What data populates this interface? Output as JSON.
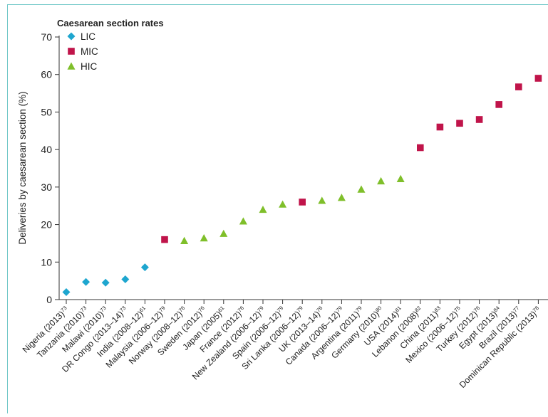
{
  "chart_data": {
    "type": "scatter",
    "legend_title": "Caesarean section rates",
    "legend_position": "top-left",
    "ylabel": "Deliveries by caesarean section (%)",
    "xlabel": "",
    "ylim": [
      0,
      70
    ],
    "yticks": [
      0,
      10,
      20,
      30,
      40,
      50,
      60,
      70
    ],
    "grid": false,
    "groups": [
      {
        "key": "LIC",
        "label": "LIC",
        "color": "#1ea6cf",
        "marker": "diamond"
      },
      {
        "key": "MIC",
        "label": "MIC",
        "color": "#c0144a",
        "marker": "square"
      },
      {
        "key": "HIC",
        "label": "HIC",
        "color": "#7fbf2a",
        "marker": "triangle"
      }
    ],
    "points": [
      {
        "label": "Nigeria (2013)",
        "ref": "73",
        "group": "LIC",
        "value": 2
      },
      {
        "label": "Tanzania (2010)",
        "ref": "73",
        "group": "LIC",
        "value": 4.7
      },
      {
        "label": "Malawi (2010)",
        "ref": "73",
        "group": "LIC",
        "value": 4.5
      },
      {
        "label": "DR Congo (2013–14)",
        "ref": "73",
        "group": "LIC",
        "value": 5.4
      },
      {
        "label": "India (2008–12)",
        "ref": "61",
        "group": "LIC",
        "value": 8.6
      },
      {
        "label": "Malaysia (2006–12)",
        "ref": "79",
        "group": "MIC",
        "value": 16
      },
      {
        "label": "Norway (2008–12)",
        "ref": "76",
        "group": "HIC",
        "value": 15.7
      },
      {
        "label": "Sweden (2012)",
        "ref": "76",
        "group": "HIC",
        "value": 16.4
      },
      {
        "label": "Japan (2005)",
        "ref": "61",
        "group": "HIC",
        "value": 17.6
      },
      {
        "label": "France (2012)",
        "ref": "76",
        "group": "HIC",
        "value": 20.9
      },
      {
        "label": "New Zealand (2006–12)",
        "ref": "79",
        "group": "HIC",
        "value": 24
      },
      {
        "label": "Spain (2006–12)",
        "ref": "79",
        "group": "HIC",
        "value": 25.4
      },
      {
        "label": "Sri Lanka (2006–12)",
        "ref": "79",
        "group": "MIC",
        "value": 26
      },
      {
        "label": "UK (2013–14)",
        "ref": "76",
        "group": "HIC",
        "value": 26.4
      },
      {
        "label": "Canada (2006–12)",
        "ref": "79",
        "group": "HIC",
        "value": 27.2
      },
      {
        "label": "Argentina (2011)",
        "ref": "79",
        "group": "HIC",
        "value": 29.4
      },
      {
        "label": "Germany (2010)",
        "ref": "80",
        "group": "HIC",
        "value": 31.6
      },
      {
        "label": "USA (2014)",
        "ref": "81",
        "group": "HIC",
        "value": 32.2
      },
      {
        "label": "Lebanon (2008)",
        "ref": "82",
        "group": "MIC",
        "value": 40.5
      },
      {
        "label": "China (2011)",
        "ref": "83",
        "group": "MIC",
        "value": 46
      },
      {
        "label": "Mexico (2006–12)",
        "ref": "75",
        "group": "MIC",
        "value": 47
      },
      {
        "label": "Turkey (2012)",
        "ref": "76",
        "group": "MIC",
        "value": 48
      },
      {
        "label": "Egypt (2013)",
        "ref": "84",
        "group": "MIC",
        "value": 52
      },
      {
        "label": "Brazil (2013)",
        "ref": "77",
        "group": "MIC",
        "value": 56.7
      },
      {
        "label": "Dominican Republic (2013)",
        "ref": "78",
        "group": "MIC",
        "value": 59
      }
    ]
  }
}
